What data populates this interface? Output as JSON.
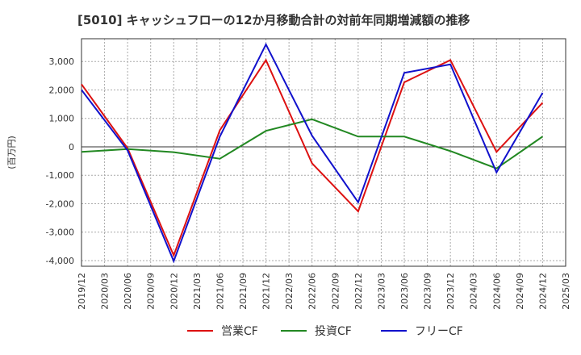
{
  "chart_data": {
    "type": "line",
    "title": "[5010]  キャッシュフローの12か月移動合計の対前年同期増減額の推移",
    "ylabel": "(百万円)",
    "xlabel": "",
    "ylim": [
      -4200,
      3800
    ],
    "yticks": [
      -4000,
      -3000,
      -2000,
      -1000,
      0,
      1000,
      2000,
      3000
    ],
    "ytick_labels": [
      "-4,000",
      "-3,000",
      "-2,000",
      "-1,000",
      "0",
      "1,000",
      "2,000",
      "3,000"
    ],
    "categories": [
      "2019/12",
      "2020/03",
      "2020/06",
      "2020/09",
      "2020/12",
      "2021/03",
      "2021/06",
      "2021/09",
      "2021/12",
      "2022/03",
      "2022/06",
      "2022/09",
      "2022/12",
      "2023/03",
      "2023/06",
      "2023/09",
      "2023/12",
      "2024/03",
      "2024/06",
      "2024/09",
      "2024/12",
      "2025/03"
    ],
    "series": [
      {
        "name": "営業CF",
        "color": "#dd1111",
        "points": [
          {
            "x": "2019/12",
            "y": 2200
          },
          {
            "x": "2020/06",
            "y": -50
          },
          {
            "x": "2020/12",
            "y": -3820
          },
          {
            "x": "2021/06",
            "y": 580
          },
          {
            "x": "2021/12",
            "y": 3050
          },
          {
            "x": "2022/06",
            "y": -580
          },
          {
            "x": "2022/12",
            "y": -2270
          },
          {
            "x": "2023/06",
            "y": 2270
          },
          {
            "x": "2023/12",
            "y": 3050
          },
          {
            "x": "2024/06",
            "y": -180
          },
          {
            "x": "2024/12",
            "y": 1550
          }
        ]
      },
      {
        "name": "投資CF",
        "color": "#228822",
        "points": [
          {
            "x": "2019/12",
            "y": -180
          },
          {
            "x": "2020/06",
            "y": -80
          },
          {
            "x": "2020/12",
            "y": -190
          },
          {
            "x": "2021/06",
            "y": -420
          },
          {
            "x": "2021/12",
            "y": 560
          },
          {
            "x": "2022/06",
            "y": 970
          },
          {
            "x": "2022/12",
            "y": 360
          },
          {
            "x": "2023/06",
            "y": 360
          },
          {
            "x": "2023/12",
            "y": -150
          },
          {
            "x": "2024/06",
            "y": -760
          },
          {
            "x": "2024/12",
            "y": 360
          }
        ]
      },
      {
        "name": "フリーCF",
        "color": "#1111cc",
        "points": [
          {
            "x": "2019/12",
            "y": 2000
          },
          {
            "x": "2020/06",
            "y": -130
          },
          {
            "x": "2020/12",
            "y": -4020
          },
          {
            "x": "2021/06",
            "y": 360
          },
          {
            "x": "2021/12",
            "y": 3600
          },
          {
            "x": "2022/06",
            "y": 390
          },
          {
            "x": "2022/12",
            "y": -1950
          },
          {
            "x": "2023/06",
            "y": 2600
          },
          {
            "x": "2023/12",
            "y": 2900
          },
          {
            "x": "2024/06",
            "y": -900
          },
          {
            "x": "2024/12",
            "y": 1900
          }
        ]
      }
    ],
    "legend_position": "bottom-center",
    "grid": true
  }
}
